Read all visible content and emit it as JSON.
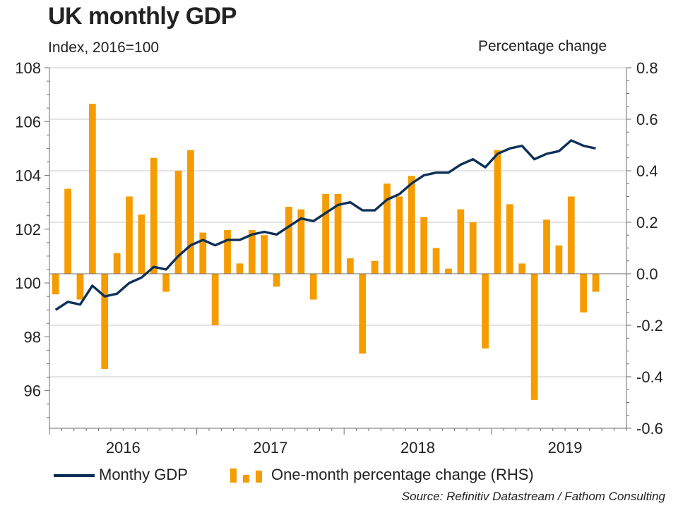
{
  "chart_data": {
    "type": "bar+line",
    "title": "UK monthly GDP",
    "left_axis_label": "Index, 2016=100",
    "right_axis_label": "Percentage change",
    "left_ylim": [
      94.6,
      108
    ],
    "left_ticks": [
      "108",
      "106",
      "104",
      "102",
      "100",
      "98",
      "96"
    ],
    "left_tick_values": [
      108,
      106,
      104,
      102,
      100,
      98,
      96
    ],
    "right_ylim": [
      -0.6,
      0.8
    ],
    "right_ticks": [
      "0.8",
      "0.6",
      "0.4",
      "0.2",
      "0.0",
      "-0.2",
      "-0.4",
      "-0.6"
    ],
    "right_tick_values": [
      0.8,
      0.6,
      0.4,
      0.2,
      0.0,
      -0.2,
      -0.4,
      -0.6
    ],
    "x_labels": [
      "2016",
      "2017",
      "2018",
      "2019"
    ],
    "months": [
      "Jan 2016",
      "Feb 2016",
      "Mar 2016",
      "Apr 2016",
      "May 2016",
      "Jun 2016",
      "Jul 2016",
      "Aug 2016",
      "Sep 2016",
      "Oct 2016",
      "Nov 2016",
      "Dec 2016",
      "Jan 2017",
      "Feb 2017",
      "Mar 2017",
      "Apr 2017",
      "May 2017",
      "Jun 2017",
      "Jul 2017",
      "Aug 2017",
      "Sep 2017",
      "Oct 2017",
      "Nov 2017",
      "Dec 2017",
      "Jan 2018",
      "Feb 2018",
      "Mar 2018",
      "Apr 2018",
      "May 2018",
      "Jun 2018",
      "Jul 2018",
      "Aug 2018",
      "Sep 2018",
      "Oct 2018",
      "Nov 2018",
      "Dec 2018",
      "Jan 2019",
      "Feb 2019",
      "Mar 2019",
      "Apr 2019",
      "May 2019",
      "Jun 2019",
      "Jul 2019",
      "Aug 2019",
      "Sep 2019",
      "Oct 2019",
      "Nov 2019"
    ],
    "series": [
      {
        "name": "Monthy GDP",
        "type": "line",
        "axis": "left",
        "color": "#0d3059",
        "values": [
          99.0,
          99.3,
          99.2,
          99.9,
          99.5,
          99.6,
          100.0,
          100.2,
          100.6,
          100.5,
          101.0,
          101.4,
          101.6,
          101.4,
          101.6,
          101.6,
          101.8,
          101.9,
          101.8,
          102.1,
          102.4,
          102.3,
          102.6,
          102.9,
          103.0,
          102.7,
          102.7,
          103.1,
          103.3,
          103.7,
          104.0,
          104.1,
          104.1,
          104.4,
          104.6,
          104.3,
          104.8,
          105.0,
          105.1,
          104.6,
          104.8,
          104.9,
          105.3,
          105.1,
          105.0
        ],
        "start_index": 0
      },
      {
        "name": "One-month percentage change (RHS)",
        "type": "bar",
        "axis": "right",
        "color": "#f59c00",
        "values": [
          -0.08,
          0.33,
          -0.1,
          0.66,
          -0.37,
          0.08,
          0.3,
          0.23,
          0.45,
          -0.07,
          0.4,
          0.48,
          0.16,
          -0.2,
          0.17,
          0.04,
          0.17,
          0.15,
          -0.05,
          0.26,
          0.25,
          -0.1,
          0.31,
          0.31,
          0.06,
          -0.31,
          0.05,
          0.35,
          0.3,
          0.38,
          0.22,
          0.1,
          0.02,
          0.25,
          0.2,
          -0.29,
          0.48,
          0.27,
          0.04,
          -0.49,
          0.21,
          0.11,
          0.3,
          -0.15,
          -0.07
        ]
      }
    ]
  },
  "legend": {
    "line_label": "Monthy GDP",
    "bar_label": "One-month percentage change (RHS)"
  },
  "source": "Source: Refinitiv Datastream / Fathom Consulting"
}
